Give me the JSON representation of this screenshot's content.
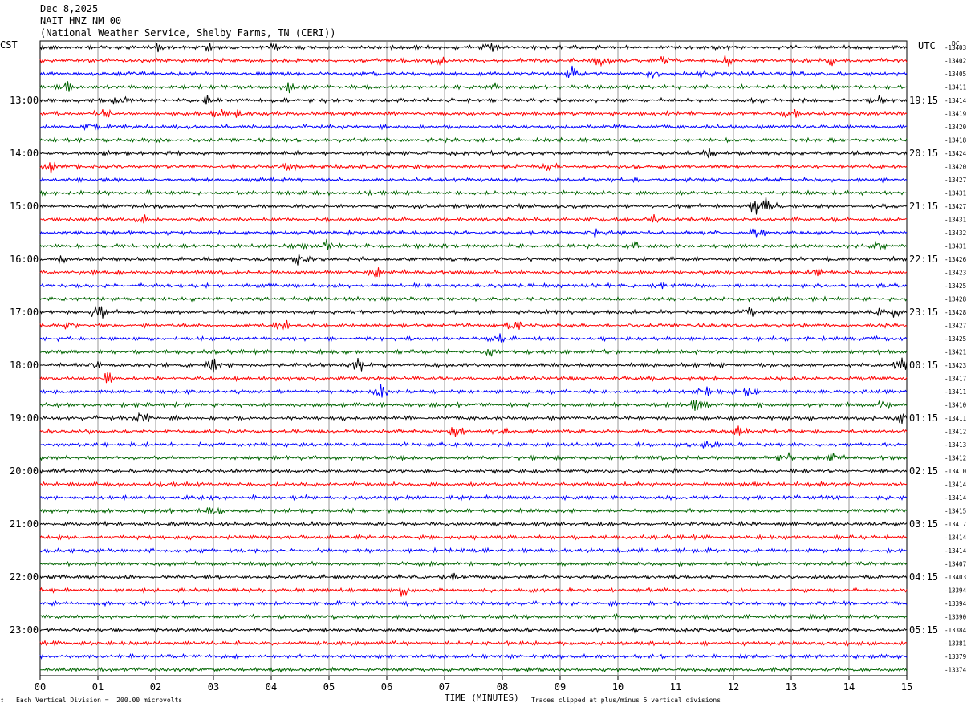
{
  "header": {
    "date": "Dec 8,2025",
    "station": "NAIT HNZ NM 00",
    "location": "(National Weather Service, Shelby Farms, TN (CERI))"
  },
  "left_axis_title": "CST",
  "right_axis_title": "UTC",
  "dc_title": "DC",
  "footer": {
    "scale_prefix": "↕",
    "scale": "Each Vertical Division =  200.00 microvolts",
    "xlabel": "TIME (MINUTES)",
    "clip_note": "Traces clipped at plus/minus 5 vertical divisions"
  },
  "colors": {
    "black": "#000000",
    "red": "#ff0000",
    "blue": "#0000ff",
    "green": "#006400",
    "grid": "#808080"
  },
  "chart_data": {
    "type": "line",
    "title": "NAIT HNZ NM 00",
    "xlabel": "TIME (MINUTES)",
    "x_ticks": [
      "00",
      "01",
      "02",
      "03",
      "04",
      "05",
      "06",
      "07",
      "08",
      "09",
      "10",
      "11",
      "12",
      "13",
      "14",
      "15"
    ],
    "xlim": [
      0,
      15
    ],
    "grid": true,
    "traces_per_hour": 4,
    "trace_color_cycle": [
      "black",
      "red",
      "blue",
      "green"
    ],
    "left_hour_labels": [
      "13:00",
      "14:00",
      "15:00",
      "16:00",
      "17:00",
      "18:00",
      "19:00",
      "20:00",
      "21:00",
      "22:00",
      "23:00"
    ],
    "right_hour_labels": [
      "19:15",
      "20:15",
      "21:15",
      "22:15",
      "23:15",
      "00:15",
      "01:15",
      "02:15",
      "03:15",
      "04:15",
      "05:15"
    ],
    "first_labeled_trace_index": 4,
    "dc_offsets": [
      "-13403",
      "-13402",
      "-13405",
      "-13411",
      "-13414",
      "-13419",
      "-13420",
      "-13418",
      "-13424",
      "-13420",
      "-13427",
      "-13431",
      "-13427",
      "-13431",
      "-13432",
      "-13431",
      "-13426",
      "-13423",
      "-13425",
      "-13428",
      "-13428",
      "-13427",
      "-13425",
      "-13421",
      "-13423",
      "-13417",
      "-13411",
      "-13410",
      "-13411",
      "-13412",
      "-13413",
      "-13412",
      "-13410",
      "-13414",
      "-13414",
      "-13415",
      "-13417",
      "-13414",
      "-13414",
      "-13407",
      "-13403",
      "-13394",
      "-13394",
      "-13390",
      "-13384",
      "-13381",
      "-13379",
      "-13374"
    ],
    "events": [
      {
        "trace": 0,
        "minute": 2.0,
        "amp": 2.5
      },
      {
        "trace": 0,
        "minute": 2.9,
        "amp": 2.0
      },
      {
        "trace": 0,
        "minute": 4.0,
        "amp": 1.5
      },
      {
        "trace": 0,
        "minute": 7.8,
        "amp": 1.5
      },
      {
        "trace": 1,
        "minute": 6.9,
        "amp": 1.5
      },
      {
        "trace": 1,
        "minute": 9.7,
        "amp": 2.5
      },
      {
        "trace": 1,
        "minute": 10.8,
        "amp": 1.5
      },
      {
        "trace": 1,
        "minute": 11.9,
        "amp": 2.5
      },
      {
        "trace": 1,
        "minute": 13.7,
        "amp": 1.5
      },
      {
        "trace": 2,
        "minute": 9.2,
        "amp": 3.0
      },
      {
        "trace": 2,
        "minute": 10.6,
        "amp": 1.5
      },
      {
        "trace": 2,
        "minute": 11.5,
        "amp": 1.5
      },
      {
        "trace": 3,
        "minute": 0.5,
        "amp": 2.0
      },
      {
        "trace": 3,
        "minute": 4.3,
        "amp": 2.0
      },
      {
        "trace": 3,
        "minute": 7.8,
        "amp": 1.5
      },
      {
        "trace": 4,
        "minute": 1.4,
        "amp": 1.5
      },
      {
        "trace": 4,
        "minute": 2.9,
        "amp": 1.5
      },
      {
        "trace": 4,
        "minute": 14.5,
        "amp": 1.5
      },
      {
        "trace": 5,
        "minute": 1.1,
        "amp": 2.0
      },
      {
        "trace": 5,
        "minute": 3.1,
        "amp": 2.0
      },
      {
        "trace": 5,
        "minute": 3.4,
        "amp": 1.5
      },
      {
        "trace": 5,
        "minute": 13.0,
        "amp": 2.5
      },
      {
        "trace": 6,
        "minute": 0.9,
        "amp": 1.5
      },
      {
        "trace": 7,
        "minute": 2.0,
        "amp": 2.0
      },
      {
        "trace": 8,
        "minute": 1.2,
        "amp": 1.5
      },
      {
        "trace": 8,
        "minute": 11.6,
        "amp": 2.0
      },
      {
        "trace": 9,
        "minute": 0.2,
        "amp": 2.5
      },
      {
        "trace": 9,
        "minute": 4.3,
        "amp": 1.5
      },
      {
        "trace": 9,
        "minute": 8.8,
        "amp": 1.5
      },
      {
        "trace": 12,
        "minute": 12.4,
        "amp": 3.0
      },
      {
        "trace": 12,
        "minute": 12.6,
        "amp": 3.0
      },
      {
        "trace": 13,
        "minute": 1.8,
        "amp": 1.5
      },
      {
        "trace": 13,
        "minute": 10.6,
        "amp": 1.5
      },
      {
        "trace": 14,
        "minute": 9.6,
        "amp": 1.5
      },
      {
        "trace": 14,
        "minute": 12.4,
        "amp": 1.5
      },
      {
        "trace": 15,
        "minute": 5.0,
        "amp": 3.0
      },
      {
        "trace": 15,
        "minute": 4.5,
        "amp": 2.0
      },
      {
        "trace": 15,
        "minute": 14.5,
        "amp": 1.5
      },
      {
        "trace": 15,
        "minute": 10.3,
        "amp": 1.5
      },
      {
        "trace": 16,
        "minute": 0.4,
        "amp": 1.5
      },
      {
        "trace": 16,
        "minute": 4.5,
        "amp": 2.5
      },
      {
        "trace": 17,
        "minute": 5.8,
        "amp": 2.0
      },
      {
        "trace": 17,
        "minute": 13.4,
        "amp": 1.5
      },
      {
        "trace": 18,
        "minute": 10.7,
        "amp": 1.5
      },
      {
        "trace": 20,
        "minute": 1.0,
        "amp": 3.0
      },
      {
        "trace": 20,
        "minute": 12.3,
        "amp": 1.5
      },
      {
        "trace": 20,
        "minute": 14.5,
        "amp": 1.5
      },
      {
        "trace": 20,
        "minute": 14.8,
        "amp": 1.5
      },
      {
        "trace": 21,
        "minute": 4.2,
        "amp": 2.0
      },
      {
        "trace": 21,
        "minute": 8.2,
        "amp": 2.0
      },
      {
        "trace": 21,
        "minute": 0.5,
        "amp": 1.5
      },
      {
        "trace": 22,
        "minute": 7.9,
        "amp": 2.0
      },
      {
        "trace": 23,
        "minute": 7.8,
        "amp": 1.5
      },
      {
        "trace": 24,
        "minute": 3.0,
        "amp": 3.0
      },
      {
        "trace": 24,
        "minute": 5.5,
        "amp": 3.0
      },
      {
        "trace": 24,
        "minute": 1.0,
        "amp": 1.5
      },
      {
        "trace": 24,
        "minute": 14.9,
        "amp": 3.0
      },
      {
        "trace": 25,
        "minute": 1.2,
        "amp": 2.0
      },
      {
        "trace": 26,
        "minute": 5.9,
        "amp": 3.0
      },
      {
        "trace": 26,
        "minute": 12.3,
        "amp": 2.0
      },
      {
        "trace": 26,
        "minute": 11.5,
        "amp": 2.0
      },
      {
        "trace": 27,
        "minute": 11.4,
        "amp": 3.0
      },
      {
        "trace": 27,
        "minute": 14.6,
        "amp": 1.5
      },
      {
        "trace": 28,
        "minute": 1.8,
        "amp": 3.0
      },
      {
        "trace": 28,
        "minute": 14.9,
        "amp": 2.0
      },
      {
        "trace": 29,
        "minute": 7.2,
        "amp": 2.0
      },
      {
        "trace": 29,
        "minute": 8.0,
        "amp": 1.5
      },
      {
        "trace": 29,
        "minute": 12.1,
        "amp": 1.5
      },
      {
        "trace": 30,
        "minute": 11.6,
        "amp": 1.5
      },
      {
        "trace": 31,
        "minute": 12.9,
        "amp": 2.5
      },
      {
        "trace": 31,
        "minute": 13.7,
        "amp": 1.5
      },
      {
        "trace": 35,
        "minute": 3.0,
        "amp": 1.2
      },
      {
        "trace": 40,
        "minute": 7.1,
        "amp": 1.5
      },
      {
        "trace": 41,
        "minute": 6.3,
        "amp": 3.0
      }
    ]
  }
}
